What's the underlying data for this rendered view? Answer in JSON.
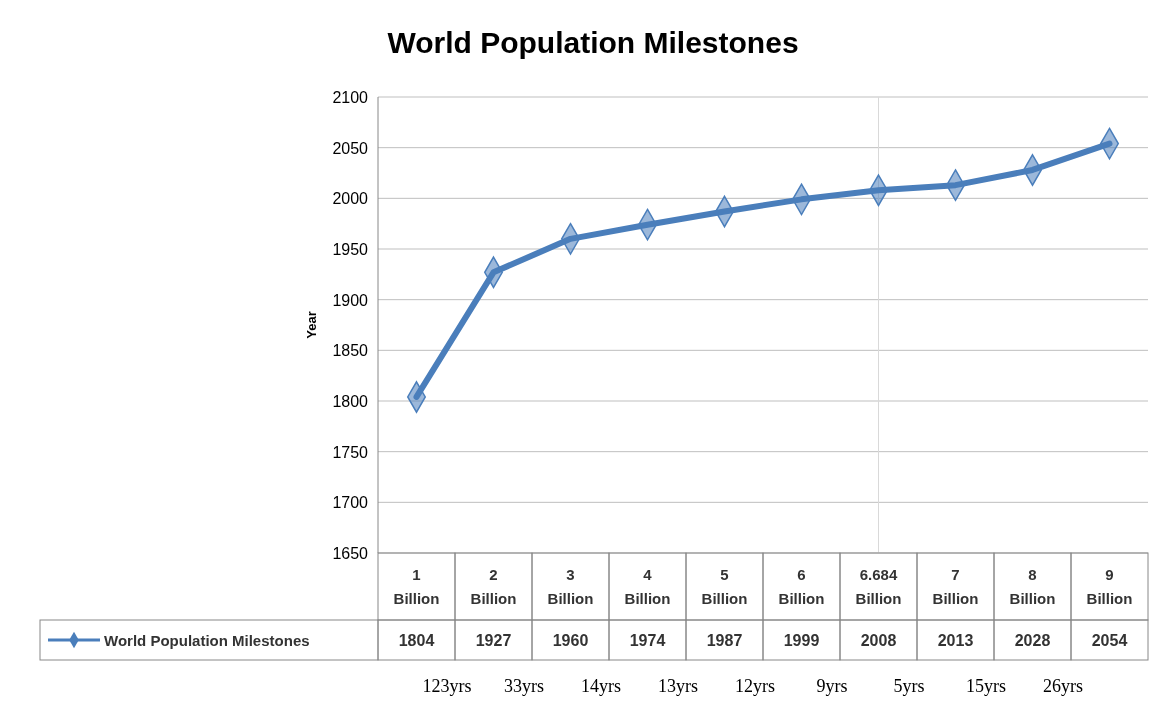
{
  "chart_data": {
    "type": "line",
    "title": "World Population Milestones",
    "ylabel": "Year",
    "categories": [
      "1 Billion",
      "2 Billion",
      "3 Billion",
      "4 Billion",
      "5 Billion",
      "6 Billion",
      "6.684 Billion",
      "7 Billion",
      "8 Billion",
      "9 Billion"
    ],
    "series": [
      {
        "name": "World Population Milestones",
        "color": "#4a7ebb",
        "values": [
          1804,
          1927,
          1960,
          1974,
          1987,
          1999,
          2008,
          2013,
          2028,
          2054
        ]
      }
    ],
    "ylim": [
      1650,
      2100
    ],
    "yticks": [
      1650,
      1700,
      1750,
      1800,
      1850,
      1900,
      1950,
      2000,
      2050,
      2100
    ],
    "grid": "y",
    "marker": "diamond",
    "data_labels": true,
    "legend": "bottom left",
    "ref_lines": [
      {
        "axis": "x",
        "value": "6.684 Billion",
        "color": "#d9d9d9"
      }
    ],
    "annotations": [
      "123yrs",
      "33yrs",
      "14yrs",
      "13yrs",
      "12yrs",
      "9yrs",
      "5yrs",
      "15yrs",
      "26yrs"
    ]
  }
}
